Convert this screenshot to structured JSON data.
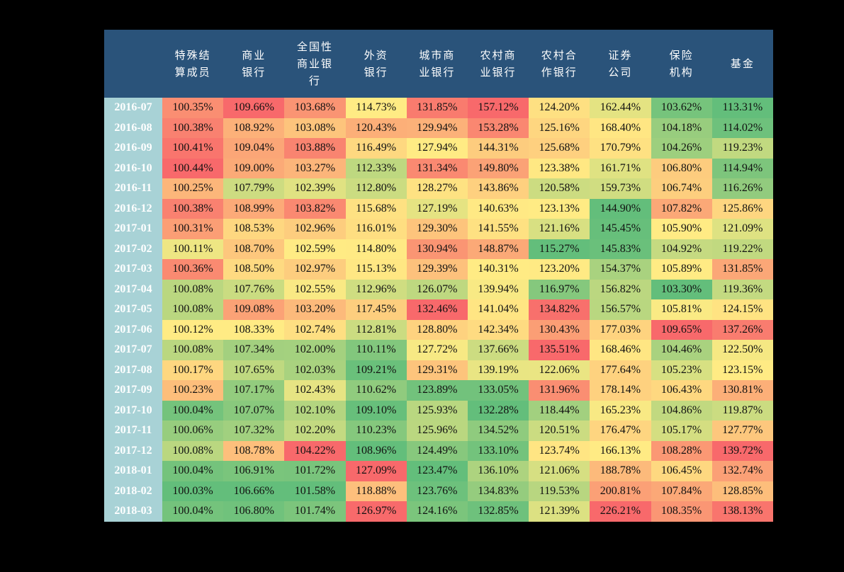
{
  "table": {
    "header_corner": "",
    "columns": [
      {
        "lines": [
          "特殊结",
          "算成员"
        ]
      },
      {
        "lines": [
          "商业",
          "银行"
        ]
      },
      {
        "lines": [
          "全国性",
          "商业银",
          "行"
        ]
      },
      {
        "lines": [
          "外资",
          "银行"
        ]
      },
      {
        "lines": [
          "城市商",
          "业银行"
        ]
      },
      {
        "lines": [
          "农村商",
          "业银行"
        ]
      },
      {
        "lines": [
          "农村合",
          "作银行"
        ]
      },
      {
        "lines": [
          "证券",
          "公司"
        ]
      },
      {
        "lines": [
          "保险",
          "机构"
        ]
      },
      {
        "lines": [
          "基金"
        ]
      }
    ],
    "colors": {
      "header_bg": "#2a537a",
      "date_bg": "#a8d2d6",
      "low": "#63be7b",
      "mid": "#ffeb84",
      "high": "#f8696b"
    }
  },
  "chart_data": {
    "type": "heatmap",
    "title": "",
    "xlabel": "",
    "ylabel": "",
    "columns": [
      "特殊结算成员",
      "商业银行",
      "全国性商业银行",
      "外资银行",
      "城市商业银行",
      "农村商业银行",
      "农村合作银行",
      "证券公司",
      "保险机构",
      "基金"
    ],
    "rows": [
      "2016-07",
      "2016-08",
      "2016-09",
      "2016-10",
      "2016-11",
      "2016-12",
      "2017-01",
      "2017-02",
      "2017-03",
      "2017-04",
      "2017-05",
      "2017-06",
      "2017-07",
      "2017-08",
      "2017-09",
      "2017-10",
      "2017-11",
      "2017-12",
      "2018-01",
      "2018-02",
      "2018-03"
    ],
    "values": [
      [
        "100.35%",
        "109.66%",
        "103.68%",
        "114.73%",
        "131.85%",
        "157.12%",
        "124.20%",
        "162.44%",
        "103.62%",
        "113.31%"
      ],
      [
        "100.38%",
        "108.92%",
        "103.08%",
        "120.43%",
        "129.94%",
        "153.28%",
        "125.16%",
        "168.40%",
        "104.18%",
        "114.02%"
      ],
      [
        "100.41%",
        "109.04%",
        "103.88%",
        "116.49%",
        "127.94%",
        "144.31%",
        "125.68%",
        "170.79%",
        "104.26%",
        "119.23%"
      ],
      [
        "100.44%",
        "109.00%",
        "103.27%",
        "112.33%",
        "131.34%",
        "149.80%",
        "123.38%",
        "161.71%",
        "106.80%",
        "114.94%"
      ],
      [
        "100.25%",
        "107.79%",
        "102.39%",
        "112.80%",
        "128.27%",
        "143.86%",
        "120.58%",
        "159.73%",
        "106.74%",
        "116.26%"
      ],
      [
        "100.38%",
        "108.99%",
        "103.82%",
        "115.68%",
        "127.19%",
        "140.63%",
        "123.13%",
        "144.90%",
        "107.82%",
        "125.86%"
      ],
      [
        "100.31%",
        "108.53%",
        "102.96%",
        "116.01%",
        "129.30%",
        "141.55%",
        "121.16%",
        "145.45%",
        "105.90%",
        "121.09%"
      ],
      [
        "100.11%",
        "108.70%",
        "102.59%",
        "114.80%",
        "130.94%",
        "148.87%",
        "115.27%",
        "145.83%",
        "104.92%",
        "119.22%"
      ],
      [
        "100.36%",
        "108.50%",
        "102.97%",
        "115.13%",
        "129.39%",
        "140.31%",
        "123.20%",
        "154.37%",
        "105.89%",
        "131.85%"
      ],
      [
        "100.08%",
        "107.76%",
        "102.55%",
        "112.96%",
        "126.07%",
        "139.94%",
        "116.97%",
        "156.82%",
        "103.30%",
        "119.36%"
      ],
      [
        "100.08%",
        "109.08%",
        "103.20%",
        "117.45%",
        "132.46%",
        "141.04%",
        "134.82%",
        "156.57%",
        "105.81%",
        "124.15%"
      ],
      [
        "100.12%",
        "108.33%",
        "102.74%",
        "112.81%",
        "128.80%",
        "142.34%",
        "130.43%",
        "177.03%",
        "109.65%",
        "137.26%"
      ],
      [
        "100.08%",
        "107.34%",
        "102.00%",
        "110.11%",
        "127.72%",
        "137.66%",
        "135.51%",
        "168.46%",
        "104.46%",
        "122.50%"
      ],
      [
        "100.17%",
        "107.65%",
        "102.03%",
        "109.21%",
        "129.31%",
        "139.19%",
        "122.06%",
        "177.64%",
        "105.23%",
        "123.15%"
      ],
      [
        "100.23%",
        "107.17%",
        "102.43%",
        "110.62%",
        "123.89%",
        "133.05%",
        "131.96%",
        "178.14%",
        "106.43%",
        "130.81%"
      ],
      [
        "100.04%",
        "107.07%",
        "102.10%",
        "109.10%",
        "125.93%",
        "132.28%",
        "118.44%",
        "165.23%",
        "104.86%",
        "119.87%"
      ],
      [
        "100.06%",
        "107.32%",
        "102.20%",
        "110.23%",
        "125.96%",
        "134.52%",
        "120.51%",
        "176.47%",
        "105.17%",
        "127.77%"
      ],
      [
        "100.08%",
        "108.78%",
        "104.22%",
        "108.96%",
        "124.49%",
        "133.10%",
        "123.74%",
        "166.13%",
        "108.28%",
        "139.72%"
      ],
      [
        "100.04%",
        "106.91%",
        "101.72%",
        "127.09%",
        "123.47%",
        "136.10%",
        "121.06%",
        "188.78%",
        "106.45%",
        "132.74%"
      ],
      [
        "100.03%",
        "106.66%",
        "101.58%",
        "118.88%",
        "123.76%",
        "134.83%",
        "119.53%",
        "200.81%",
        "107.84%",
        "128.85%"
      ],
      [
        "100.04%",
        "106.80%",
        "101.74%",
        "126.97%",
        "124.16%",
        "132.85%",
        "121.39%",
        "226.21%",
        "108.35%",
        "138.13%"
      ]
    ],
    "color_scale": "per-column green(low)-yellow(mid)-red(high)"
  }
}
